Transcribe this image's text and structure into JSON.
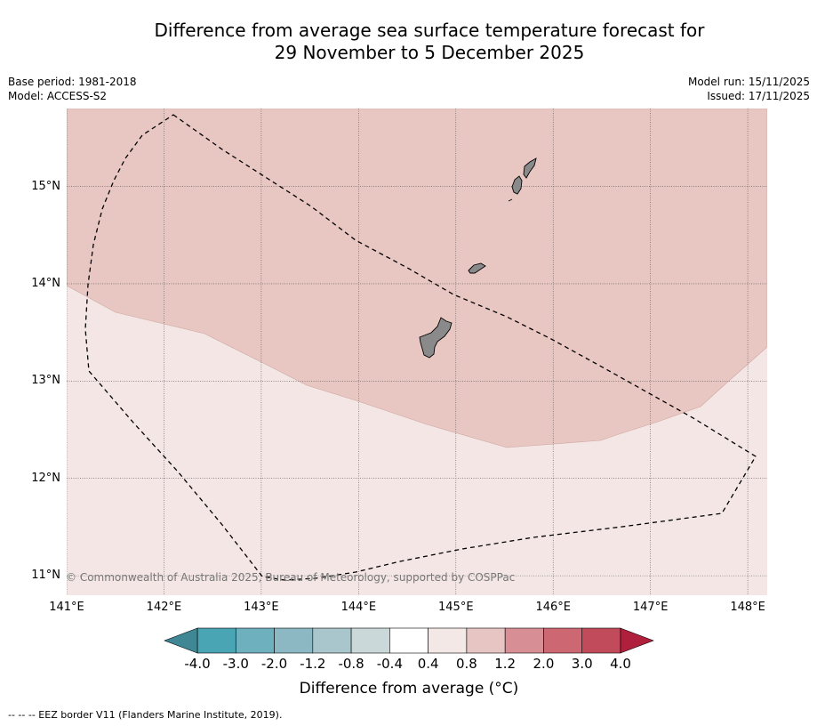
{
  "title_line1": "Difference from average sea surface temperature forecast for",
  "title_line2": "29 November to 5 December 2025",
  "base_period": "Base period: 1981-2018",
  "model": "Model: ACCESS-S2",
  "model_run": "Model run: 15/11/2025",
  "issued": "Issued: 17/11/2025",
  "map": {
    "lat_ticks": [
      {
        "value": 15,
        "label": "15°N"
      },
      {
        "value": 14,
        "label": "14°N"
      },
      {
        "value": 13,
        "label": "13°N"
      },
      {
        "value": 12,
        "label": "12°N"
      },
      {
        "value": 11,
        "label": "11°N"
      }
    ],
    "lon_ticks": [
      {
        "value": 141,
        "label": "141°E"
      },
      {
        "value": 142,
        "label": "142°E"
      },
      {
        "value": 143,
        "label": "143°E"
      },
      {
        "value": 144,
        "label": "144°E"
      },
      {
        "value": 145,
        "label": "145°E"
      },
      {
        "value": 146,
        "label": "146°E"
      },
      {
        "value": 147,
        "label": "147°E"
      },
      {
        "value": 148,
        "label": "148°E"
      }
    ],
    "lon_range": [
      141,
      148.2
    ],
    "lat_range": [
      10.8,
      15.8
    ],
    "regions": [
      {
        "band": "0.8 to 1.2",
        "color": "#e8c6c1"
      },
      {
        "band": "0.4 to 0.8",
        "color": "#f3e6e4"
      }
    ],
    "land_color": "#8a8a8a",
    "islands": [
      "Guam",
      "Rota",
      "Tinian",
      "Saipan"
    ],
    "eez_style": "dashed"
  },
  "copyright": "© Commonwealth of Australia 2025, Bureau of Meteorology, supported by COSPPac",
  "colorbar": {
    "title": "Difference from average (°C)",
    "tick_labels": [
      "-4.0",
      "-3.0",
      "-2.0",
      "-1.2",
      "-0.8",
      "-0.4",
      "0.4",
      "0.8",
      "1.2",
      "2.0",
      "3.0",
      "4.0"
    ],
    "under_color": "#3f8794",
    "over_color": "#b01f3c",
    "bin_colors": [
      "#49a4b4",
      "#6eb0bd",
      "#8cb8c3",
      "#a8c6cb",
      "#cad8d9",
      "#ffffff",
      "#f4e8e7",
      "#e7c5c2",
      "#d78e95",
      "#cd6873",
      "#c14a5b"
    ]
  },
  "eez_note": "--  --  -- EEZ border V11 (Flanders Marine Institute, 2019)."
}
